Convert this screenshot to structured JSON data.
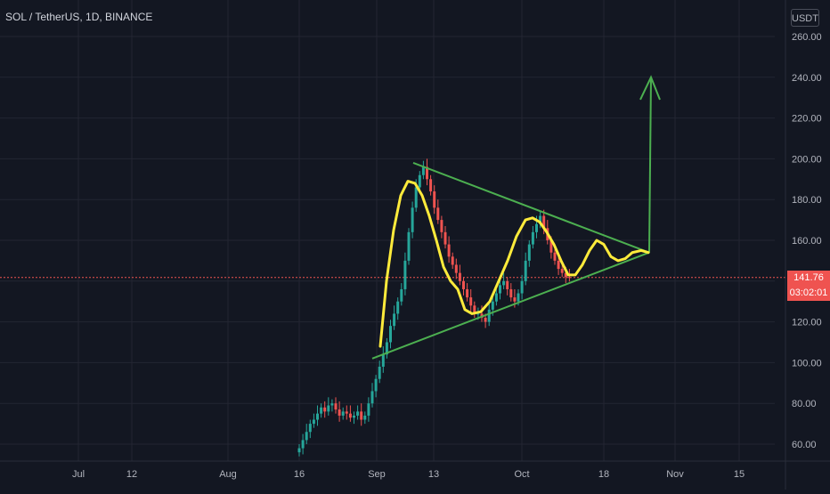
{
  "header": {
    "symbol_title": "SOL / TetherUS, 1D, BINANCE",
    "currency_button": "USDT"
  },
  "price_scale": {
    "labels": [
      "260.00",
      "240.00",
      "220.00",
      "200.00",
      "180.00",
      "160.00",
      "140.00",
      "120.00",
      "100.00",
      "80.00",
      "60.00"
    ],
    "current_price": "141.76",
    "countdown": "03:02:01"
  },
  "time_axis": {
    "labels": [
      "Jul",
      "12",
      "Aug",
      "16",
      "Sep",
      "13",
      "Oct",
      "18",
      "Nov",
      "15"
    ]
  },
  "colors": {
    "background": "#131722",
    "up_candle": "#26a69a",
    "down_candle": "#ef5350",
    "trendline": "#4caf50",
    "wave": "#ffeb3b",
    "price_line": "#ef5350",
    "grid": "#232632"
  },
  "chart_data": {
    "type": "candlestick",
    "title": "SOL / TetherUS, 1D, BINANCE",
    "ylim": [
      52,
      278
    ],
    "yticks": [
      260,
      240,
      220,
      200,
      180,
      160,
      140,
      120,
      100,
      80,
      60
    ],
    "xticks": [
      "Jul",
      "12",
      "Aug",
      "16",
      "Sep",
      "13",
      "Oct",
      "18",
      "Nov",
      "15"
    ],
    "last_price": 141.76,
    "ohlc_close": [
      58,
      62,
      66,
      70,
      72,
      75,
      78,
      76,
      79,
      80,
      77,
      74,
      76,
      75,
      73,
      74,
      76,
      72,
      74,
      80,
      86,
      92,
      98,
      104,
      110,
      118,
      124,
      130,
      136,
      150,
      164,
      176,
      186,
      192,
      196,
      190,
      184,
      176,
      170,
      164,
      158,
      152,
      148,
      144,
      140,
      136,
      132,
      128,
      124,
      124,
      122,
      120,
      126,
      130,
      134,
      138,
      140,
      136,
      132,
      130,
      134,
      140,
      150,
      158,
      164,
      168,
      172,
      166,
      160,
      154,
      150,
      146,
      144,
      142,
      141.76
    ],
    "annotations": {
      "symmetrical_triangle_upper": [
        [
          "Sep 10",
          198
        ],
        [
          "Oct 27",
          154
        ]
      ],
      "symmetrical_triangle_lower": [
        [
          "Sep 1",
          102
        ],
        [
          "Oct 27",
          154
        ]
      ],
      "breakout_target": 240
    }
  }
}
